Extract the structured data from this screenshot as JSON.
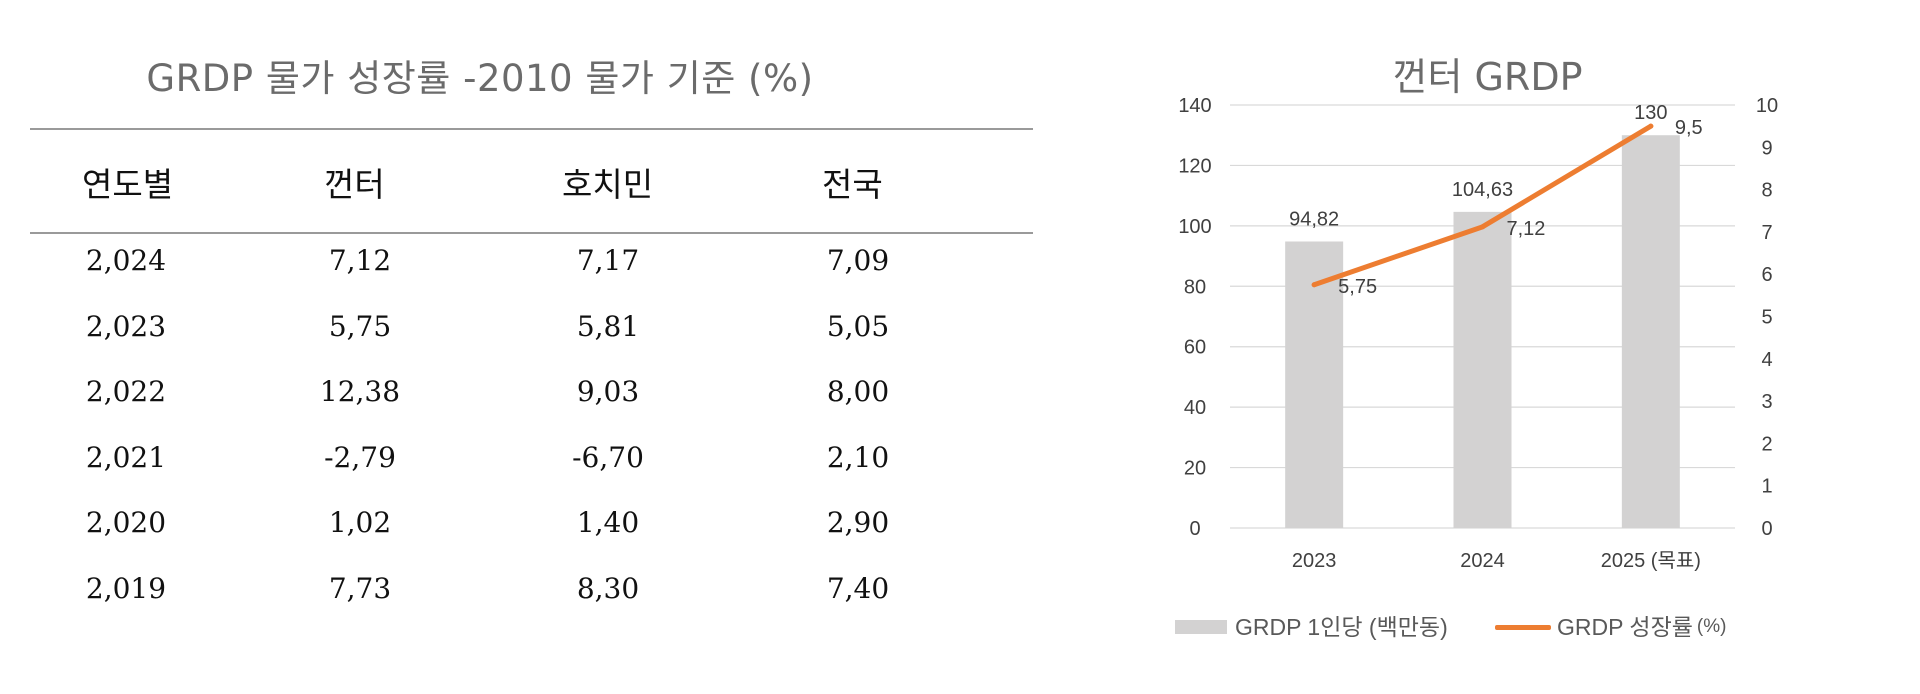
{
  "table": {
    "title": "GRDP 물가 성장률 -2010 물가 기준 (%)",
    "headers": [
      "연도별",
      "껀터",
      "호치민",
      "전국"
    ],
    "rows": [
      [
        "2,024",
        "7,12",
        "7,17",
        "7,09"
      ],
      [
        "2,023",
        "5,75",
        "5,81",
        "5,05"
      ],
      [
        "2,022",
        "12,38",
        "9,03",
        "8,00"
      ],
      [
        "2,021",
        "-2,79",
        "-6,70",
        "2,10"
      ],
      [
        "2,020",
        "1,02",
        "1,40",
        "2,90"
      ],
      [
        "2,019",
        "7,73",
        "8,30",
        "7,40"
      ]
    ]
  },
  "chart_data": {
    "type": "bar",
    "title": "껀터 GRDP",
    "categories": [
      "2023",
      "2024",
      "2025 (목표)"
    ],
    "series": [
      {
        "name": "GRDP 1인당 (백만동)",
        "type": "bar",
        "axis": "left",
        "values": [
          94.82,
          104.63,
          130
        ],
        "labels": [
          "94,82",
          "104,63",
          "130"
        ],
        "color": "#d3d2d2"
      },
      {
        "name": "GRDP 성장률",
        "type": "line",
        "axis": "right",
        "values": [
          5.75,
          7.12,
          9.5
        ],
        "labels": [
          "5,75",
          "7,12",
          "9,5"
        ],
        "color": "#ed7d31"
      }
    ],
    "y_left": {
      "min": 0,
      "max": 140,
      "step": 20,
      "ticks": [
        "0",
        "20",
        "40",
        "60",
        "80",
        "100",
        "120",
        "140"
      ]
    },
    "y_right": {
      "min": 0,
      "max": 10,
      "step": 1,
      "ticks": [
        "0",
        "1",
        "2",
        "3",
        "4",
        "5",
        "6",
        "7",
        "8",
        "9",
        "10"
      ]
    },
    "grid": true,
    "legend": {
      "position": "bottom",
      "items": [
        {
          "label": "GRDP 1인당 (백만동)"
        },
        {
          "label": "GRDP 성장률",
          "unit": "(%)"
        }
      ]
    }
  }
}
